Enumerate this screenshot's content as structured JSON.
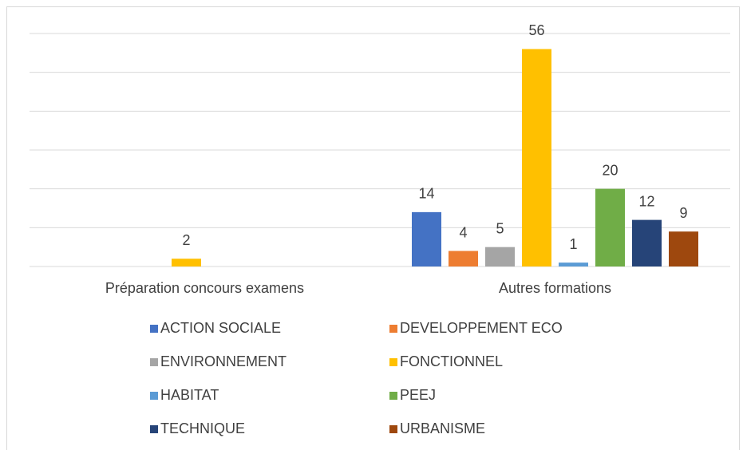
{
  "chart_data": {
    "type": "bar",
    "categories": [
      "Préparation concours examens",
      "Autres formations"
    ],
    "series": [
      {
        "name": "ACTION SOCIALE",
        "color": "#4472c4",
        "values": [
          null,
          14
        ]
      },
      {
        "name": "DEVELOPPEMENT ECO",
        "color": "#ed7d31",
        "values": [
          null,
          4
        ]
      },
      {
        "name": "ENVIRONNEMENT",
        "color": "#a5a5a5",
        "values": [
          null,
          5
        ]
      },
      {
        "name": "FONCTIONNEL",
        "color": "#ffc000",
        "values": [
          2,
          56
        ]
      },
      {
        "name": "HABITAT",
        "color": "#5b9bd5",
        "values": [
          null,
          1
        ]
      },
      {
        "name": "PEEJ",
        "color": "#70ad47",
        "values": [
          null,
          20
        ]
      },
      {
        "name": "TECHNIQUE",
        "color": "#264478",
        "values": [
          null,
          12
        ]
      },
      {
        "name": "URBANISME",
        "color": "#9e480e",
        "values": [
          null,
          9
        ]
      }
    ],
    "ylim": [
      0,
      60
    ],
    "yticks": [
      0,
      10,
      20,
      30,
      40,
      50,
      60
    ],
    "grid": true,
    "legend": "bottom"
  }
}
